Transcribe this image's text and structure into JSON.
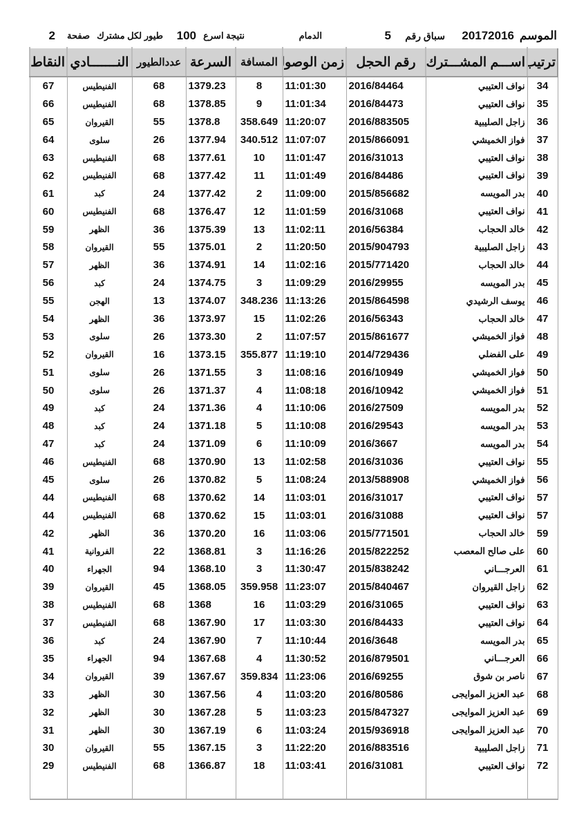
{
  "header": {
    "season_label": "الموسم",
    "season": "20172016",
    "race_label": "سباق رقم",
    "race_no": "5",
    "location": "الدمام",
    "result_label": "نتيجة اسرع",
    "fastest": "100",
    "per_label": "طيور لكل مشترك",
    "page_label": "صفحة",
    "page": "2"
  },
  "columns": [
    "ترتيب",
    "اســـم المشـــترك",
    "رقم الحجل",
    "زمن الوصول",
    "المسافة",
    "السرعة",
    "عددالطيور",
    "النـــــــادي",
    "النقاط"
  ],
  "rows": [
    [
      "34",
      "نواف العتيبي",
      "2016/84464",
      "11:01:30",
      "8",
      "1379.23",
      "68",
      "الفنيطيس",
      "67"
    ],
    [
      "35",
      "نواف العتيبي",
      "2016/84473",
      "11:01:34",
      "9",
      "1378.85",
      "68",
      "الفنيطيس",
      "66"
    ],
    [
      "36",
      "زاجل الصليبية",
      "2016/883505",
      "11:20:07",
      "358.649",
      "1378.8",
      "55",
      "القيروان",
      "65"
    ],
    [
      "37",
      "فواز الخميشي",
      "2015/866091",
      "11:07:07",
      "340.512",
      "1377.94",
      "26",
      "سلوى",
      "64"
    ],
    [
      "38",
      "نواف العتيبي",
      "2016/31013",
      "11:01:47",
      "10",
      "1377.61",
      "68",
      "الفنيطيس",
      "63"
    ],
    [
      "39",
      "نواف العتيبي",
      "2016/84486",
      "11:01:49",
      "11",
      "1377.42",
      "68",
      "الفنيطيس",
      "62"
    ],
    [
      "40",
      "بدر المويسه",
      "2015/856682",
      "11:09:00",
      "2",
      "1377.42",
      "24",
      "كبد",
      "61"
    ],
    [
      "41",
      "نواف العتيبي",
      "2016/31068",
      "11:01:59",
      "12",
      "1376.47",
      "68",
      "الفنيطيس",
      "60"
    ],
    [
      "42",
      "خالد الحجاب",
      "2016/56384",
      "11:02:11",
      "13",
      "1375.39",
      "36",
      "الظهر",
      "59"
    ],
    [
      "43",
      "زاجل الصليبية",
      "2015/904793",
      "11:20:50",
      "2",
      "1375.01",
      "55",
      "القيروان",
      "58"
    ],
    [
      "44",
      "خالد الحجاب",
      "2015/771420",
      "11:02:16",
      "14",
      "1374.91",
      "36",
      "الظهر",
      "57"
    ],
    [
      "45",
      "بدر المويسه",
      "2016/29955",
      "11:09:29",
      "3",
      "1374.75",
      "24",
      "كبد",
      "56"
    ],
    [
      "46",
      "يوسف الرشيدي",
      "2015/864598",
      "11:13:26",
      "348.236",
      "1374.07",
      "13",
      "الهجن",
      "55"
    ],
    [
      "47",
      "خالد الحجاب",
      "2016/56343",
      "11:02:26",
      "15",
      "1373.97",
      "36",
      "الظهر",
      "54"
    ],
    [
      "48",
      "فواز الخميشي",
      "2015/861677",
      "11:07:57",
      "2",
      "1373.30",
      "26",
      "سلوى",
      "53"
    ],
    [
      "49",
      "على الفضلي",
      "2014/729436",
      "11:19:10",
      "355.877",
      "1373.15",
      "16",
      "القيروان",
      "52"
    ],
    [
      "50",
      "فواز الخميشي",
      "2016/10949",
      "11:08:16",
      "3",
      "1371.55",
      "26",
      "سلوى",
      "51"
    ],
    [
      "51",
      "فواز الخميشي",
      "2016/10942",
      "11:08:18",
      "4",
      "1371.37",
      "26",
      "سلوى",
      "50"
    ],
    [
      "52",
      "بدر المويسه",
      "2016/27509",
      "11:10:06",
      "4",
      "1371.36",
      "24",
      "كبد",
      "49"
    ],
    [
      "53",
      "بدر المويسه",
      "2016/29543",
      "11:10:08",
      "5",
      "1371.18",
      "24",
      "كبد",
      "48"
    ],
    [
      "54",
      "بدر المويسه",
      "2016/3667",
      "11:10:09",
      "6",
      "1371.09",
      "24",
      "كبد",
      "47"
    ],
    [
      "55",
      "نواف العتيبي",
      "2016/31036",
      "11:02:58",
      "13",
      "1370.90",
      "68",
      "الفنيطيس",
      "46"
    ],
    [
      "56",
      "فواز الخميشي",
      "2013/588908",
      "11:08:24",
      "5",
      "1370.82",
      "26",
      "سلوى",
      "45"
    ],
    [
      "57",
      "نواف العتيبي",
      "2016/31017",
      "11:03:01",
      "14",
      "1370.62",
      "68",
      "الفنيطيس",
      "44"
    ],
    [
      "57",
      "نواف العتيبي",
      "2016/31088",
      "11:03:01",
      "15",
      "1370.62",
      "68",
      "الفنيطيس",
      "44"
    ],
    [
      "59",
      "خالد الحجاب",
      "2015/771501",
      "11:03:06",
      "16",
      "1370.20",
      "36",
      "الظهر",
      "42"
    ],
    [
      "60",
      "على صالح المعصب",
      "2015/822252",
      "11:16:26",
      "3",
      "1368.81",
      "22",
      "الفروانية",
      "41"
    ],
    [
      "61",
      "العرجـــاني",
      "2015/838242",
      "11:30:47",
      "3",
      "1368.10",
      "94",
      "الجهراء",
      "40"
    ],
    [
      "62",
      "زاجل القيروان",
      "2015/840467",
      "11:23:07",
      "359.958",
      "1368.05",
      "45",
      "القيروان",
      "39"
    ],
    [
      "63",
      "نواف العتيبي",
      "2016/31065",
      "11:03:29",
      "16",
      "1368",
      "68",
      "الفنيطيس",
      "38"
    ],
    [
      "64",
      "نواف العتيبي",
      "2016/84433",
      "11:03:30",
      "17",
      "1367.90",
      "68",
      "الفنيطيس",
      "37"
    ],
    [
      "65",
      "بدر المويسه",
      "2016/3648",
      "11:10:44",
      "7",
      "1367.90",
      "24",
      "كبد",
      "36"
    ],
    [
      "66",
      "العرجـــاني",
      "2016/879501",
      "11:30:52",
      "4",
      "1367.68",
      "94",
      "الجهراء",
      "35"
    ],
    [
      "67",
      "ناصر بن شوق",
      "2016/69255",
      "11:23:06",
      "359.834",
      "1367.67",
      "39",
      "القيروان",
      "34"
    ],
    [
      "68",
      "عبد العزيز الموايجى",
      "2016/80586",
      "11:03:20",
      "4",
      "1367.56",
      "30",
      "الظهر",
      "33"
    ],
    [
      "69",
      "عبد العزيز الموايجى",
      "2015/847327",
      "11:03:23",
      "5",
      "1367.28",
      "30",
      "الظهر",
      "32"
    ],
    [
      "70",
      "عبد العزيز الموايجى",
      "2015/936918",
      "11:03:24",
      "6",
      "1367.19",
      "30",
      "الظهر",
      "31"
    ],
    [
      "71",
      "زاجل الصليبية",
      "2016/883516",
      "11:22:20",
      "3",
      "1367.15",
      "55",
      "القيروان",
      "30"
    ],
    [
      "72",
      "نواف العتيبي",
      "2016/31081",
      "11:03:41",
      "18",
      "1366.87",
      "68",
      "الفنيطيس",
      "29"
    ]
  ]
}
